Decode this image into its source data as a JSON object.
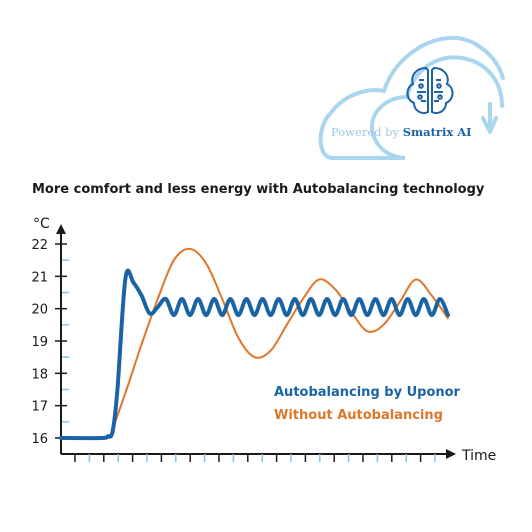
{
  "badge": {
    "powered_prefix": "Powered by ",
    "powered_brand": "Smatrix AI",
    "icon": "brain-circuit-icon"
  },
  "colors": {
    "uponor": "#1a64a5",
    "without": "#e07628",
    "cloud": "#a9d6ee",
    "axis": "#1a1a1a",
    "tick_light": "#7cc8ea"
  },
  "chart_data": {
    "type": "line",
    "title": "More comfort and less energy with Autobalancing technology",
    "ylabel": "°C",
    "xlabel": "Time",
    "yticks": [
      "22",
      "21",
      "20",
      "19",
      "18",
      "17",
      "16"
    ],
    "ylim": [
      16,
      22
    ],
    "xlim": [
      0,
      24
    ],
    "grid": false,
    "legend_position": "bottom-right",
    "series": [
      {
        "name": "Autobalancing by Uponor",
        "color": "#1a64a5",
        "x": [
          0,
          2.5,
          2.9,
          3.2,
          3.5,
          4.0,
          4.5,
          5.0,
          5.5,
          6.0,
          6.5,
          7.0,
          7.5,
          8.0,
          8.5,
          9.0,
          9.5,
          10.0,
          10.5,
          11.0,
          11.5,
          12.0,
          12.5,
          13.0,
          13.5,
          14.0,
          14.5,
          15.0,
          15.5,
          16.0,
          16.5,
          17.0,
          17.5,
          18.0,
          18.5,
          19.0,
          19.5,
          20.0,
          20.5,
          21.0,
          21.5,
          22.0,
          22.5,
          23.0,
          23.5,
          24.0
        ],
        "y": [
          16.0,
          16.0,
          16.05,
          16.2,
          17.5,
          20.95,
          20.8,
          20.4,
          19.85,
          20.05,
          20.3,
          19.8,
          20.3,
          19.8,
          20.3,
          19.8,
          20.3,
          19.8,
          20.3,
          19.8,
          20.3,
          19.8,
          20.3,
          19.8,
          20.3,
          19.8,
          20.3,
          19.8,
          20.3,
          19.8,
          20.3,
          19.8,
          20.3,
          19.8,
          20.3,
          19.8,
          20.3,
          19.8,
          20.3,
          19.8,
          20.3,
          19.8,
          20.3,
          19.8,
          20.3,
          19.8
        ]
      },
      {
        "name": "Without Autobalancing",
        "color": "#e07628",
        "x": [
          3.0,
          4.0,
          5.0,
          6.0,
          7.0,
          8.0,
          9.0,
          10.0,
          11.0,
          12.0,
          13.0,
          14.0,
          15.0,
          16.0,
          17.0,
          18.0,
          19.0,
          20.0,
          21.0,
          22.0,
          23.0,
          24.0
        ],
        "y": [
          16.0,
          17.4,
          18.9,
          20.3,
          21.5,
          21.85,
          21.4,
          20.3,
          19.1,
          18.5,
          18.7,
          19.5,
          20.3,
          20.9,
          20.6,
          19.9,
          19.3,
          19.5,
          20.2,
          20.9,
          20.4,
          19.7
        ]
      }
    ]
  }
}
